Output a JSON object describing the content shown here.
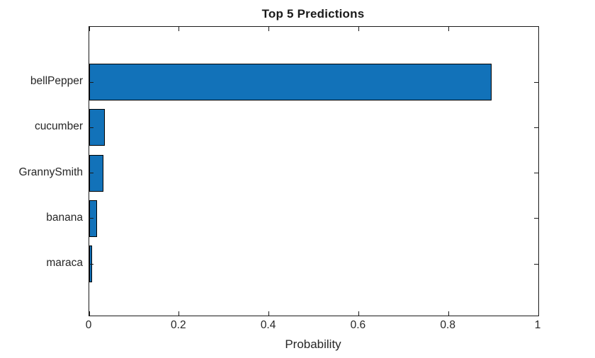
{
  "figure": {
    "background": "#ffffff"
  },
  "chart_data": {
    "type": "bar",
    "orientation": "horizontal",
    "title": "Top 5 Predictions",
    "xlabel": "Probability",
    "ylabel": "",
    "categories": [
      "bellPepper",
      "cucumber",
      "GrannySmith",
      "banana",
      "maraca"
    ],
    "values": [
      0.896,
      0.035,
      0.031,
      0.017,
      0.006
    ],
    "xlim": [
      0,
      1
    ],
    "xticks": [
      0,
      0.2,
      0.4,
      0.6,
      0.8,
      1
    ],
    "xtick_labels": [
      "0",
      "0.2",
      "0.4",
      "0.6",
      "0.8",
      "1"
    ],
    "grid": false,
    "legend": "none",
    "box": "on",
    "tick_direction": "in",
    "bar_color": "#1272b9",
    "bar_edge_color": "#000000",
    "axis_color": "#1a1a1a",
    "text_color": "#262626"
  }
}
